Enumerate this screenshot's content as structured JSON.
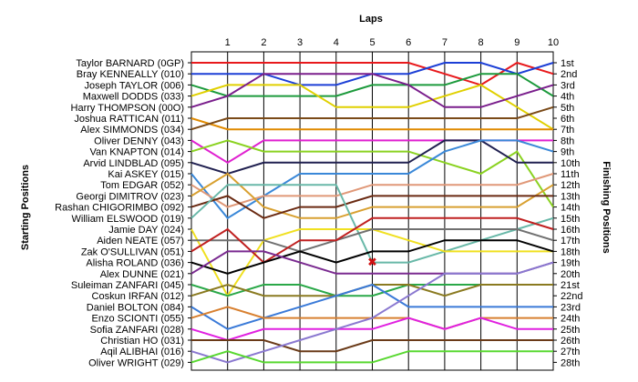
{
  "chart_data": {
    "type": "line",
    "title": "",
    "x_axis_title": "Laps",
    "left_axis_title": "Starting Positions",
    "right_axis_title": "Finishing Positions",
    "laps": [
      1,
      2,
      3,
      4,
      5,
      6,
      7,
      8,
      9,
      10
    ],
    "y_range": [
      1,
      28
    ],
    "y_inverted": true,
    "grid": "vertical",
    "finishing_labels": [
      "1st",
      "2nd",
      "3rd",
      "4th",
      "5th",
      "6th",
      "7th",
      "8th",
      "9th",
      "10th",
      "11th",
      "12th",
      "13th",
      "14th",
      "15th",
      "16th",
      "17th",
      "18th",
      "19th",
      "20th",
      "21st",
      "22nd",
      "23rd",
      "24th",
      "25th",
      "26th",
      "27th",
      "28th"
    ],
    "series": [
      {
        "name": "Taylor BARNARD (0GP)",
        "color": "#e8191c",
        "positions": [
          1,
          1,
          1,
          1,
          1,
          1,
          1,
          2,
          3,
          1,
          2
        ]
      },
      {
        "name": "Bray KENNEALLY (010)",
        "color": "#1c3fd6",
        "positions": [
          2,
          2,
          2,
          3,
          3,
          2,
          2,
          1,
          1,
          2,
          1
        ]
      },
      {
        "name": "Joseph TAYLOR (006)",
        "color": "#1c9a3c",
        "positions": [
          3,
          4,
          4,
          4,
          4,
          3,
          3,
          3,
          2,
          2,
          4
        ]
      },
      {
        "name": "Maxwell DODDS (033)",
        "color": "#e0d000",
        "positions": [
          4,
          3,
          3,
          3,
          5,
          5,
          5,
          4,
          3,
          5,
          7
        ]
      },
      {
        "name": "Harry THOMPSON (00O)",
        "color": "#7a1e8c",
        "positions": [
          5,
          4,
          2,
          2,
          2,
          2,
          3,
          5,
          5,
          4,
          3
        ]
      },
      {
        "name": "Joshua RATTICAN (011)",
        "color": "#e08a00",
        "positions": [
          6,
          7,
          7,
          7,
          7,
          7,
          7,
          7,
          7,
          7,
          7
        ]
      },
      {
        "name": "Alex SIMMONDS (034)",
        "color": "#7a4a18",
        "positions": [
          7,
          6,
          6,
          6,
          6,
          6,
          6,
          6,
          6,
          6,
          5
        ]
      },
      {
        "name": "Oliver DENNY (043)",
        "color": "#e020d0",
        "positions": [
          8,
          10,
          8,
          8,
          8,
          8,
          8,
          8,
          8,
          8,
          8
        ]
      },
      {
        "name": "Van KNAPTON (014)",
        "color": "#8ad220",
        "positions": [
          9,
          8,
          9,
          9,
          9,
          9,
          9,
          10,
          11,
          9,
          14
        ]
      },
      {
        "name": "Arvid LINDBLAD (095)",
        "color": "#202050",
        "positions": [
          10,
          11,
          10,
          10,
          10,
          10,
          10,
          8,
          8,
          10,
          10
        ]
      },
      {
        "name": "Kai ASKEY (015)",
        "color": "#3a88d8",
        "positions": [
          11,
          15,
          13,
          11,
          11,
          11,
          11,
          9,
          8,
          8,
          9
        ]
      },
      {
        "name": "Tom EDGAR (052)",
        "color": "#e09878",
        "positions": [
          12,
          14,
          13,
          13,
          13,
          12,
          12,
          12,
          12,
          12,
          11
        ]
      },
      {
        "name": "Georgi DIMITROV (023)",
        "color": "#d8a030",
        "positions": [
          13,
          11,
          14,
          15,
          15,
          14,
          14,
          14,
          14,
          14,
          12
        ]
      },
      {
        "name": "Rashan CHIGORIMBO (092)",
        "color": "#6a2a12",
        "positions": [
          14,
          13,
          15,
          14,
          14,
          13,
          13,
          13,
          13,
          13,
          13
        ]
      },
      {
        "name": "William ELSWOOD (019)",
        "color": "#68b8a8",
        "positions": [
          15,
          12,
          12,
          12,
          12,
          19,
          19,
          18,
          17,
          16,
          15
        ]
      },
      {
        "name": "Jamie DAY (024)",
        "color": "#f0e020",
        "positions": [
          16,
          22,
          17,
          16,
          16,
          16,
          17,
          18,
          18,
          18,
          18
        ]
      },
      {
        "name": "Aiden NEATE (057)",
        "color": "#707070",
        "positions": [
          17,
          17,
          17,
          18,
          17,
          16,
          16,
          16,
          16,
          16,
          17
        ]
      },
      {
        "name": "Zak O'SULLIVAN (051)",
        "color": "#c02020",
        "positions": [
          18,
          16,
          19,
          17,
          17,
          15,
          15,
          15,
          15,
          15,
          16
        ]
      },
      {
        "name": "Alisha ROLAND (036)",
        "color": "#000000",
        "positions": [
          19,
          20,
          19,
          18,
          19,
          18,
          18,
          17,
          17,
          17,
          18
        ]
      },
      {
        "name": "Alex DUNNE (021)",
        "color": "#7a2a90",
        "positions": [
          20,
          18,
          18,
          19,
          20,
          20,
          20,
          20,
          20,
          20,
          19
        ]
      },
      {
        "name": "Suleiman ZANFARI (045)",
        "color": "#2aa848",
        "positions": [
          21,
          22,
          21,
          21,
          22,
          22,
          21,
          21,
          21,
          21,
          21
        ]
      },
      {
        "name": "Coskun IRFAN (012)",
        "color": "#8a7a20",
        "positions": [
          22,
          21,
          22,
          22,
          22,
          21,
          21,
          22,
          21,
          21,
          21
        ]
      },
      {
        "name": "Daniel BOLTON (084)",
        "color": "#3a7ad8",
        "positions": [
          23,
          25,
          24,
          23,
          22,
          21,
          23,
          23,
          23,
          23,
          23
        ]
      },
      {
        "name": "Enzo SCIONTI (055)",
        "color": "#d88030",
        "positions": [
          24,
          23,
          24,
          24,
          24,
          24,
          24,
          25,
          24,
          24,
          24
        ]
      },
      {
        "name": "Sofia ZANFARI (028)",
        "color": "#e020e0",
        "positions": [
          25,
          26,
          25,
          25,
          25,
          25,
          24,
          25,
          24,
          25,
          25
        ]
      },
      {
        "name": "Christian HO (031)",
        "color": "#6a3a18",
        "positions": [
          26,
          26,
          26,
          27,
          27,
          26,
          26,
          26,
          26,
          26,
          26
        ]
      },
      {
        "name": "Aqil ALIBHAI (016)",
        "color": "#8a78d0",
        "positions": [
          27,
          28,
          27,
          26,
          25,
          24,
          22,
          20,
          20,
          20,
          19
        ]
      },
      {
        "name": "Oliver WRIGHT (029)",
        "color": "#58d830",
        "positions": [
          28,
          27,
          28,
          28,
          28,
          28,
          27,
          27,
          27,
          27,
          27
        ]
      }
    ],
    "retirement_marker": {
      "driver": "William ELSWOOD (019)",
      "lap": 5,
      "position": 19,
      "symbol": "✖",
      "color": "#d01010"
    }
  }
}
